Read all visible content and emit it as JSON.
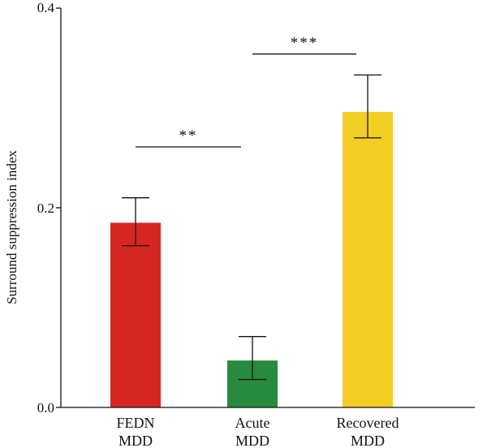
{
  "chart_data": {
    "type": "bar",
    "title": "",
    "xlabel": "",
    "ylabel": "Surround suppression index",
    "ylim": [
      0.0,
      0.4
    ],
    "yticks": [
      "0.0",
      "0.2",
      "0.4"
    ],
    "ytick_values": [
      0.0,
      0.2,
      0.4
    ],
    "grid": false,
    "categories": [
      {
        "line1": "FEDN",
        "line2": "MDD"
      },
      {
        "line1": "Acute",
        "line2": "MDD"
      },
      {
        "line1": "Recovered",
        "line2": "MDD"
      }
    ],
    "values": [
      0.185,
      0.047,
      0.296
    ],
    "error_low": [
      0.162,
      0.028,
      0.27
    ],
    "error_high": [
      0.21,
      0.071,
      0.333
    ],
    "colors": [
      "#d52624",
      "#278a3d",
      "#f3ce24"
    ],
    "significance": [
      {
        "from": 0,
        "to": 1,
        "label": "**",
        "y": 0.261
      },
      {
        "from": 1,
        "to": 2,
        "label": "***",
        "y": 0.354
      }
    ]
  }
}
